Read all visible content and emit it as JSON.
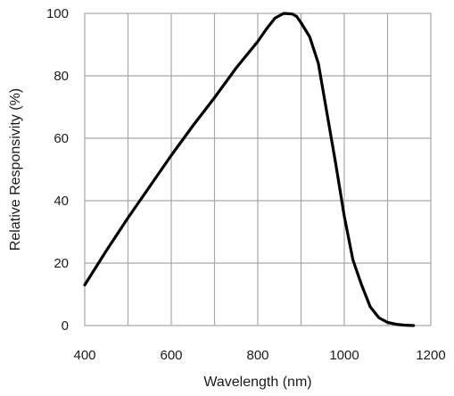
{
  "chart_data": {
    "type": "line",
    "title": "",
    "xlabel": "Wavelength (nm)",
    "ylabel": "Relative Responsivity (%)",
    "xlim": [
      400,
      1200
    ],
    "ylim": [
      0,
      100
    ],
    "x_ticks": [
      400,
      600,
      800,
      1000,
      1200
    ],
    "y_ticks": [
      0,
      20,
      40,
      60,
      80,
      100
    ],
    "grid": true,
    "x_grid_step": 100,
    "y_grid_step": 20,
    "series": [
      {
        "color": "#000000",
        "x": [
          400,
          450,
          500,
          550,
          600,
          650,
          700,
          750,
          800,
          820,
          840,
          860,
          880,
          890,
          900,
          920,
          940,
          960,
          980,
          1000,
          1020,
          1040,
          1060,
          1080,
          1100,
          1120,
          1140,
          1160
        ],
        "y": [
          13,
          24,
          34.5,
          44.5,
          54.5,
          64,
          73,
          82.5,
          91,
          95,
          98.5,
          100,
          99.8,
          99,
          97,
          92.5,
          84,
          68,
          52,
          35,
          21,
          13,
          6,
          2.5,
          1,
          0.4,
          0.1,
          0
        ]
      }
    ]
  }
}
